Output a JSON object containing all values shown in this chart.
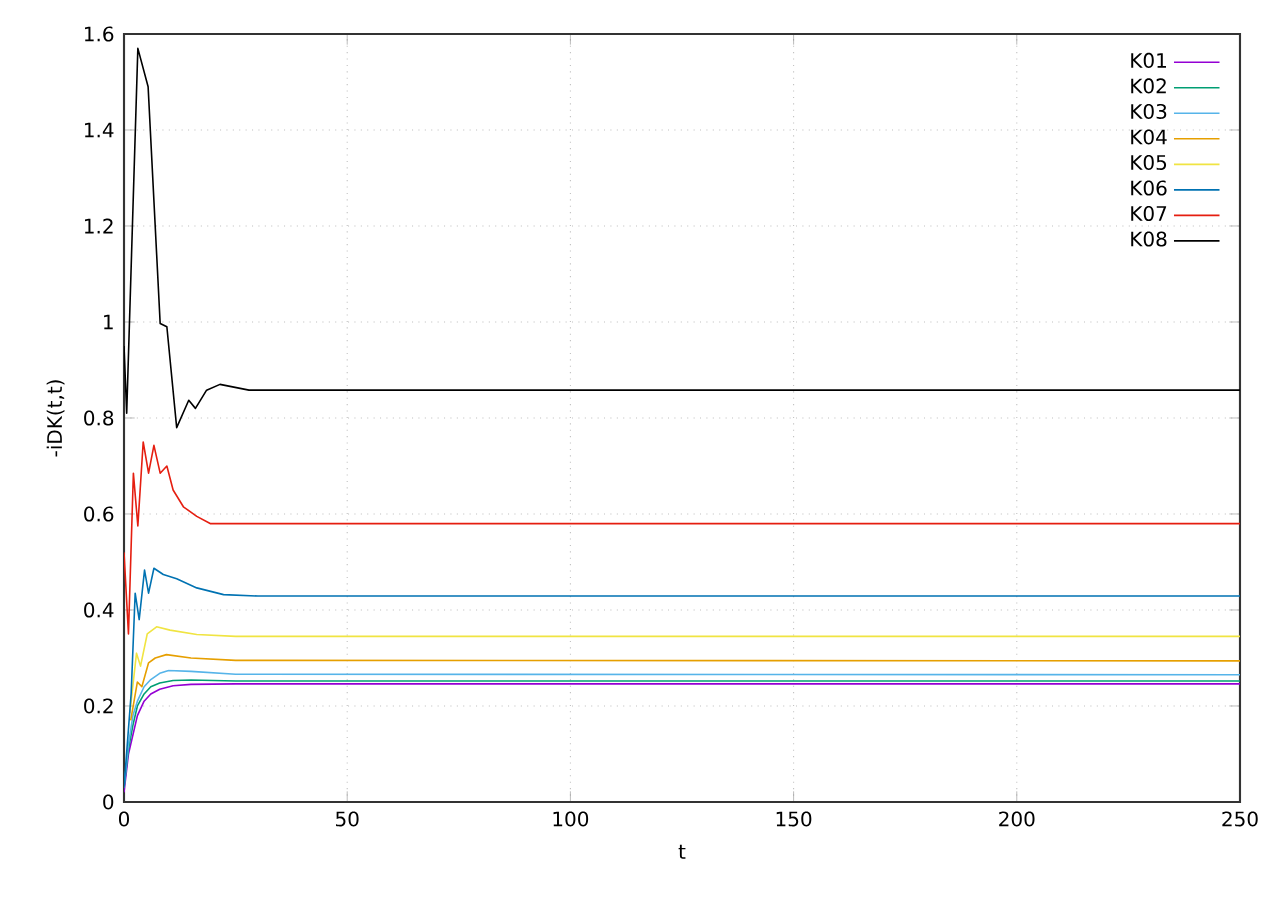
{
  "chart_data": {
    "type": "line",
    "xlabel": "t",
    "ylabel": "-iDK(t,t)",
    "xlim": [
      0,
      250
    ],
    "ylim": [
      0,
      1.6
    ],
    "xticks": [
      0,
      50,
      100,
      150,
      200,
      250
    ],
    "yticks": [
      0,
      0.2,
      0.4,
      0.6,
      0.8,
      1,
      1.2,
      1.4,
      1.6
    ],
    "grid": true,
    "legend": "top right",
    "marker": "none",
    "line_style": "solid",
    "series": [
      {
        "name": "K01",
        "color": "#9400d3",
        "x": [
          0,
          1,
          2,
          3,
          4.5,
          6,
          8,
          11,
          15,
          25,
          250
        ],
        "values": [
          0.02,
          0.1,
          0.14,
          0.18,
          0.21,
          0.225,
          0.235,
          0.242,
          0.245,
          0.246,
          0.246
        ]
      },
      {
        "name": "K02",
        "color": "#009e73",
        "x": [
          0,
          1,
          2,
          3,
          4.5,
          6,
          8,
          11,
          15,
          25,
          250
        ],
        "values": [
          0.03,
          0.11,
          0.16,
          0.2,
          0.225,
          0.24,
          0.248,
          0.253,
          0.254,
          0.252,
          0.252
        ]
      },
      {
        "name": "K03",
        "color": "#56b4e9",
        "x": [
          0,
          1,
          2,
          3,
          4.5,
          6,
          8,
          10,
          15,
          25,
          250
        ],
        "values": [
          0.03,
          0.12,
          0.18,
          0.21,
          0.24,
          0.255,
          0.268,
          0.274,
          0.272,
          0.266,
          0.265
        ]
      },
      {
        "name": "K04",
        "color": "#e69f00",
        "x": [
          1.5,
          3,
          4,
          5.5,
          7,
          9.5,
          15,
          25,
          250
        ],
        "values": [
          0.17,
          0.25,
          0.24,
          0.29,
          0.3,
          0.307,
          0.3,
          0.295,
          0.294
        ]
      },
      {
        "name": "K05",
        "color": "#f0e442",
        "x": [
          1.3,
          2.8,
          3.7,
          5.2,
          7.3,
          10.3,
          16.3,
          25,
          250
        ],
        "values": [
          0.185,
          0.31,
          0.283,
          0.35,
          0.365,
          0.358,
          0.349,
          0.345,
          0.345
        ]
      },
      {
        "name": "K06",
        "color": "#0072b2",
        "x": [
          0,
          1.6,
          2.5,
          3.4,
          4.6,
          5.5,
          6.7,
          8.8,
          11.8,
          16.3,
          22.3,
          30,
          250
        ],
        "values": [
          0.03,
          0.226,
          0.435,
          0.38,
          0.483,
          0.435,
          0.487,
          0.474,
          0.465,
          0.446,
          0.432,
          0.429,
          0.429
        ]
      },
      {
        "name": "K07",
        "color": "#e51e10",
        "x": [
          0,
          1,
          2.1,
          3.1,
          4.3,
          5.5,
          6.7,
          8.1,
          9.6,
          11,
          13.3,
          16.3,
          19.3,
          25,
          250
        ],
        "values": [
          0.52,
          0.35,
          0.685,
          0.575,
          0.75,
          0.685,
          0.743,
          0.685,
          0.7,
          0.65,
          0.615,
          0.595,
          0.58,
          0.58,
          0.58
        ]
      },
      {
        "name": "K08",
        "color": "#000000",
        "x": [
          0,
          0.6,
          3.1,
          5.4,
          8.1,
          9.6,
          11.8,
          14.5,
          16,
          18.5,
          21.5,
          28,
          250
        ],
        "values": [
          0.95,
          0.81,
          1.57,
          1.49,
          0.997,
          0.99,
          0.78,
          0.837,
          0.82,
          0.858,
          0.87,
          0.858,
          0.858
        ]
      }
    ]
  }
}
